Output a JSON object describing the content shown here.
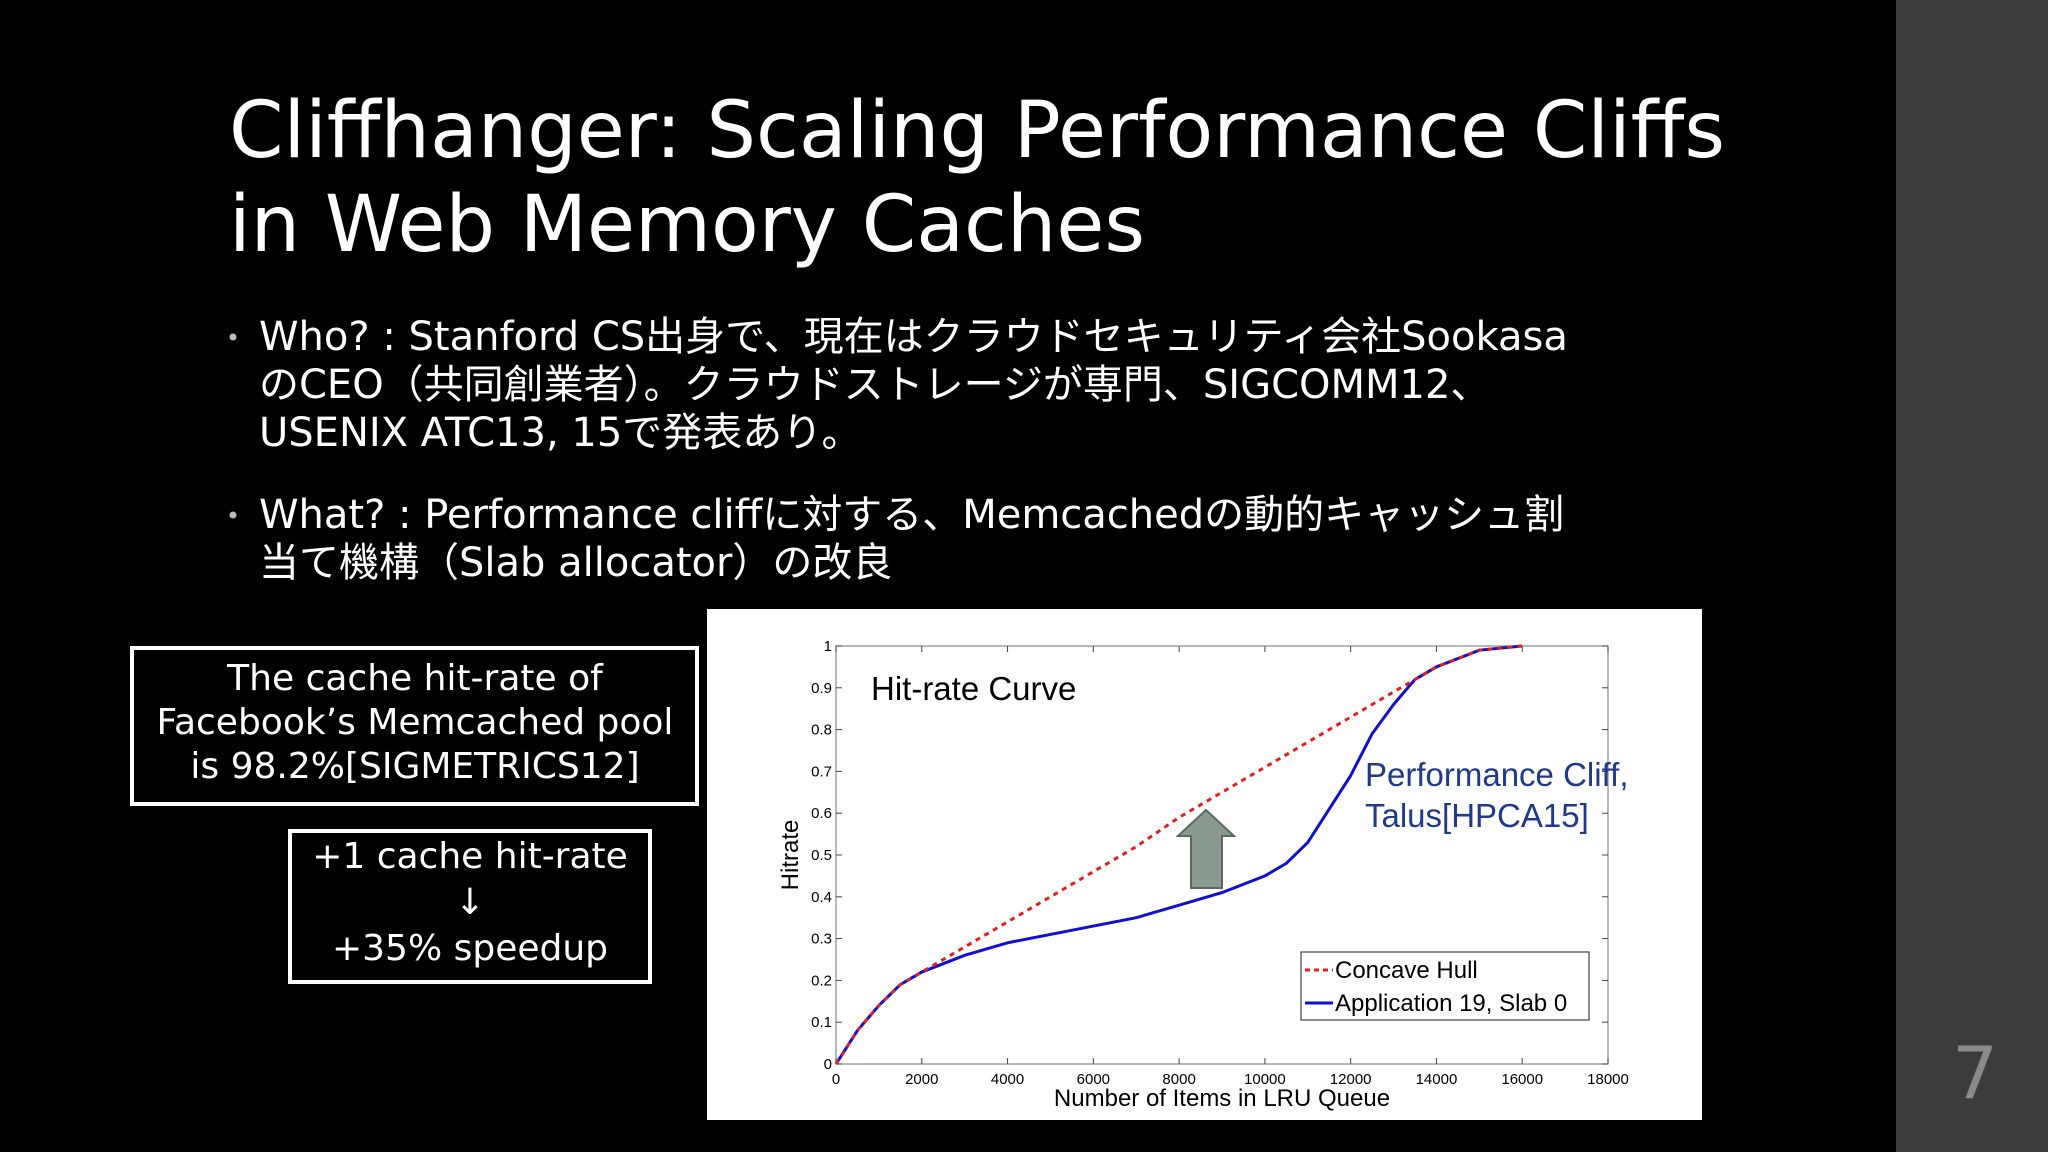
{
  "title": [
    "Cliffhanger: Scaling Performance Cliffs",
    "in Web Memory Caches"
  ],
  "bullets": [
    [
      "Who? : Stanford CS出身で、現在はクラウドセキュリティ会社Sookasa",
      "のCEO（共同創業者）。クラウドストレージが専門、SIGCOMM12、",
      "USENIX ATC13, 15で発表あり。"
    ],
    [
      "What? : Performance cliffに対する、Memcachedの動的キャッシュ割",
      "当て機構（Slab allocator）の改良"
    ]
  ],
  "boxes": [
    [
      "The cache hit-rate of",
      "Facebook’s Memcached pool",
      "is 98.2%[SIGMETRICS12]"
    ],
    [
      "+1 cache hit-rate",
      "↓",
      "+35% speedup"
    ]
  ],
  "page_number": "7",
  "chart_data": {
    "type": "line",
    "x_label": "Number of Items in LRU Queue",
    "y_label": "Hitrate",
    "annotations": [
      "Hit-rate Curve",
      [
        "Performance Cliff,",
        "Talus[HPCA15]"
      ]
    ],
    "x": [
      0,
      250,
      500,
      1000,
      1500,
      2000,
      3000,
      4000,
      5000,
      6000,
      7000,
      8000,
      9000,
      10000,
      10500,
      11000,
      11500,
      12000,
      12500,
      13000,
      13500,
      14000,
      14500,
      15000,
      16000
    ],
    "series": [
      {
        "name": "Concave Hull",
        "color": "#e02020",
        "dash": true,
        "values": [
          0,
          0.04,
          0.08,
          0.14,
          0.19,
          0.22,
          0.28,
          0.34,
          0.4,
          0.46,
          0.52,
          0.59,
          0.65,
          0.71,
          0.74,
          0.77,
          0.8,
          0.83,
          0.86,
          0.89,
          0.92,
          0.95,
          0.97,
          0.99,
          1.0
        ]
      },
      {
        "name": "Application 19, Slab 0",
        "color": "#1010d0",
        "dash": false,
        "values": [
          0,
          0.04,
          0.08,
          0.14,
          0.19,
          0.22,
          0.26,
          0.29,
          0.31,
          0.33,
          0.35,
          0.38,
          0.41,
          0.45,
          0.48,
          0.53,
          0.61,
          0.69,
          0.79,
          0.86,
          0.92,
          0.95,
          0.97,
          0.99,
          1.0
        ]
      }
    ],
    "xlim": [
      0,
      18000
    ],
    "xticks": [
      0,
      2000,
      4000,
      6000,
      8000,
      10000,
      12000,
      14000,
      16000,
      18000
    ],
    "ylim": [
      0,
      1
    ],
    "yticks": [
      0,
      0.1,
      0.2,
      0.3,
      0.4,
      0.5,
      0.6,
      0.7,
      0.8,
      0.9,
      1
    ],
    "legend": "lower right"
  }
}
